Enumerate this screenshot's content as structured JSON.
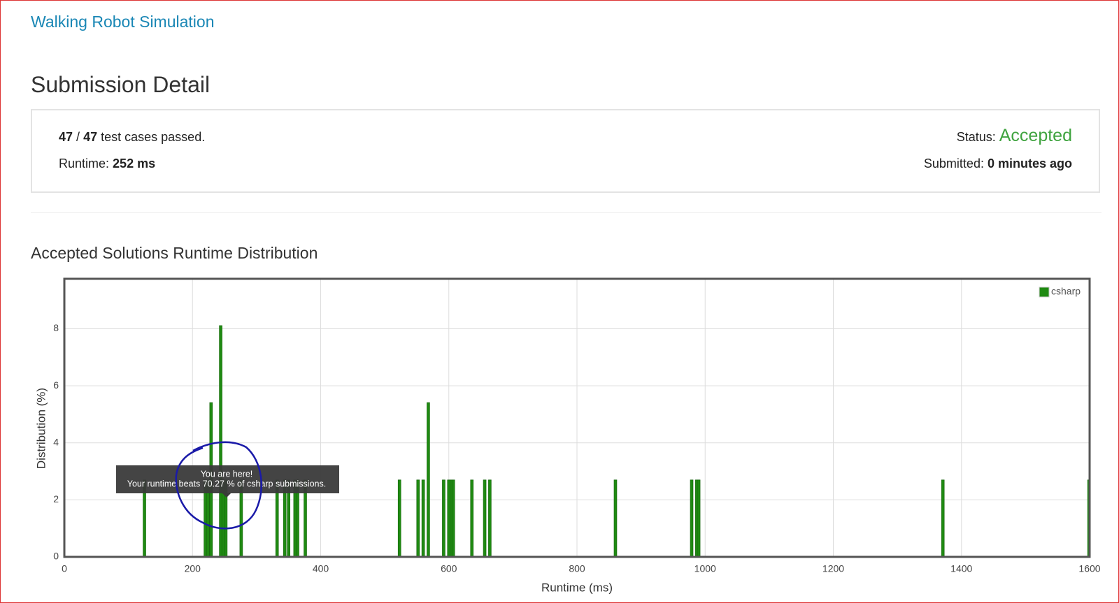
{
  "problem_link": "Walking Robot Simulation",
  "heading": "Submission Detail",
  "summary": {
    "passed": "47",
    "separator": "/",
    "total": "47",
    "passed_text": "test cases passed.",
    "runtime_label": "Runtime:",
    "runtime": "252 ms",
    "status_label": "Status:",
    "status": "Accepted",
    "submitted_label": "Submitted:",
    "submitted": "0 minutes ago"
  },
  "chart_heading": "Accepted Solutions Runtime Distribution",
  "tooltip": {
    "title": "You are here!",
    "text": "Your runtime beats 70.27 % of csharp submissions."
  },
  "chart_data": {
    "type": "bar",
    "x_label": "Runtime (ms)",
    "y_label": "Distribution (%)",
    "x": [
      125,
      220,
      224,
      229,
      244,
      248,
      252,
      276,
      332,
      344,
      350,
      360,
      364,
      376,
      523,
      552,
      560,
      568,
      592,
      600,
      604,
      607,
      636,
      656,
      664,
      860,
      979,
      987,
      990,
      1371,
      1599
    ],
    "series": [
      {
        "name": "csharp",
        "color": "#1f8a12",
        "values": [
          2.7,
          2.7,
          2.7,
          5.41,
          8.11,
          2.7,
          2.7,
          2.7,
          2.7,
          2.7,
          2.7,
          2.7,
          2.7,
          2.7,
          2.7,
          2.7,
          2.7,
          5.41,
          2.7,
          2.7,
          2.7,
          2.7,
          2.7,
          2.7,
          2.7,
          2.7,
          2.7,
          2.7,
          2.7,
          2.7,
          2.7
        ]
      }
    ],
    "xlim": [
      0,
      1600
    ],
    "xticks": [
      0,
      200,
      400,
      600,
      800,
      1000,
      1200,
      1400,
      1600
    ],
    "ylim": [
      0,
      9.75
    ],
    "yticks": [
      0,
      2,
      4,
      6,
      8
    ],
    "grid": true,
    "legend": "upper right"
  }
}
